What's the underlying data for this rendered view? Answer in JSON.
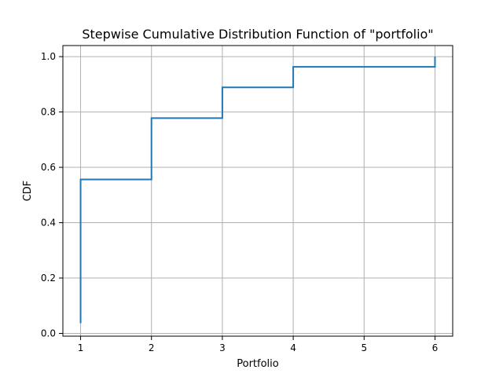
{
  "chart_data": {
    "type": "line",
    "step": "post",
    "title": "Stepwise Cumulative Distribution Function of \"portfolio\"",
    "xlabel": "Portfolio",
    "ylabel": "CDF",
    "xlim": [
      0.75,
      6.25
    ],
    "ylim": [
      -0.01,
      1.04
    ],
    "xticks": [
      1,
      2,
      3,
      4,
      5,
      6
    ],
    "yticks": [
      0.0,
      0.2,
      0.4,
      0.6,
      0.8,
      1.0
    ],
    "xtick_labels": [
      "1",
      "2",
      "3",
      "4",
      "5",
      "6"
    ],
    "ytick_labels": [
      "0.0",
      "0.2",
      "0.4",
      "0.6",
      "0.8",
      "1.0"
    ],
    "grid": true,
    "series": [
      {
        "color": "#1f77b4",
        "points": [
          [
            1,
            0.037
          ],
          [
            1,
            0.556
          ],
          [
            2,
            0.556
          ],
          [
            2,
            0.778
          ],
          [
            3,
            0.778
          ],
          [
            3,
            0.889
          ],
          [
            4,
            0.889
          ],
          [
            4,
            0.963
          ],
          [
            6,
            0.963
          ],
          [
            6,
            1.0
          ]
        ]
      }
    ]
  }
}
